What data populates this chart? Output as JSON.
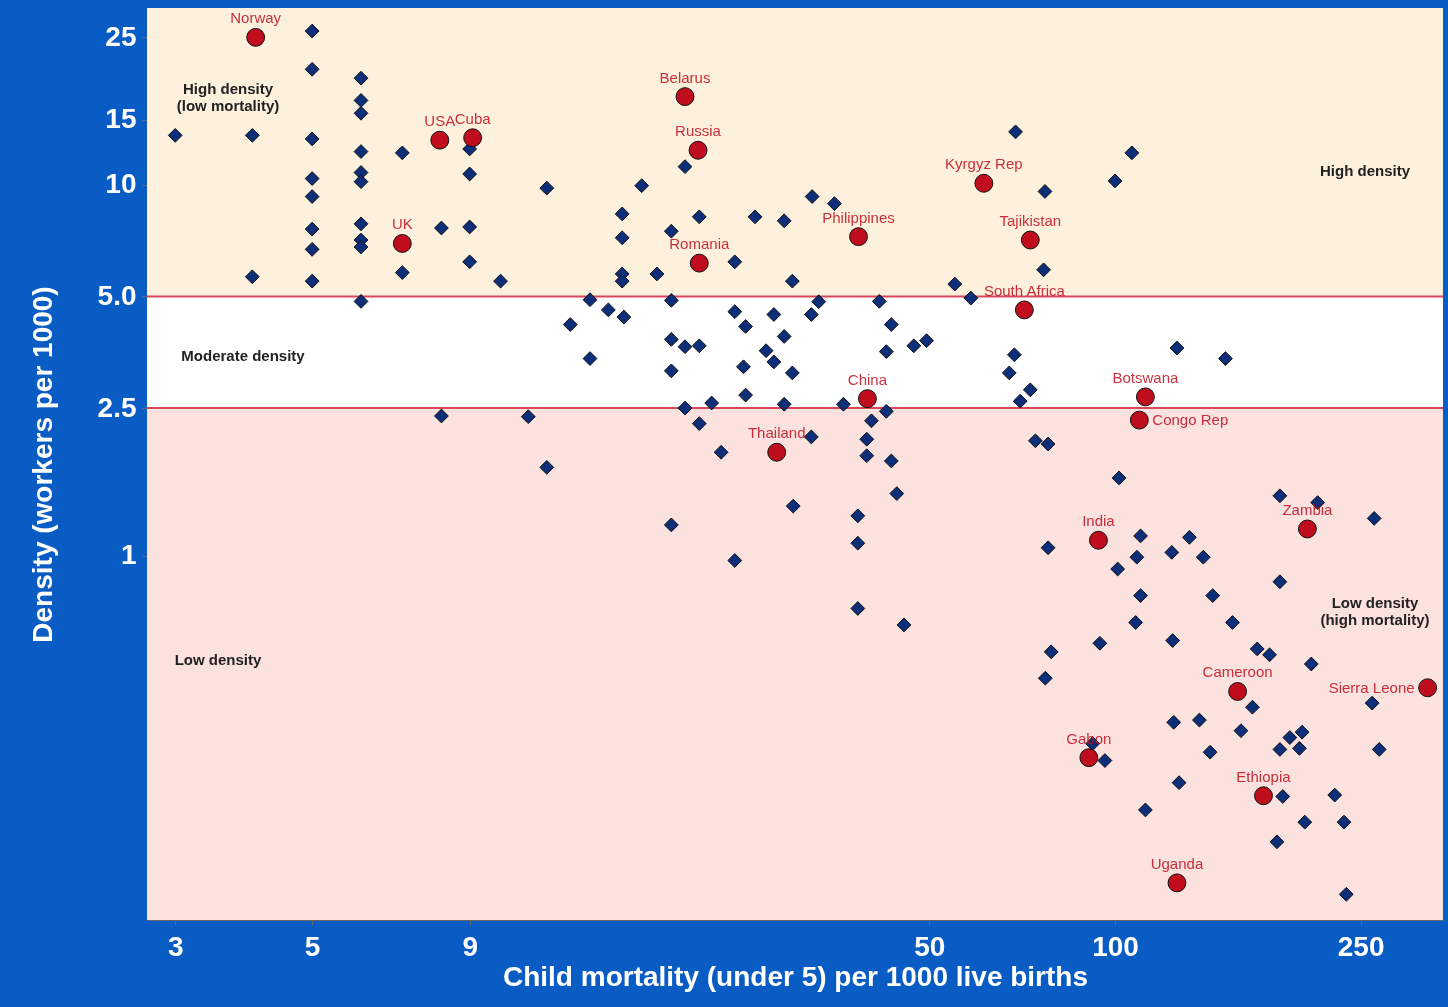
{
  "chart_data": {
    "type": "scatter",
    "xlabel": "Child mortality (under 5) per 1000 live births",
    "ylabel": "Density (workers per 1000)",
    "log": "xy",
    "xlim": [
      2.7,
      340
    ],
    "ylim": [
      0.104,
      30
    ],
    "xticks": [
      3,
      5,
      9,
      50,
      100,
      250
    ],
    "yticks": [
      1,
      2.5,
      {
        "value": 5,
        "label": "5.0"
      },
      10,
      15,
      25
    ],
    "bands": [
      {
        "axis": "y",
        "from": 5,
        "to": 30,
        "color": "#fdf0dc",
        "label": "High density"
      },
      {
        "axis": "y",
        "from": 2.5,
        "to": 5,
        "color": "#ffffff",
        "label": "Moderate density"
      },
      {
        "axis": "y",
        "from": 0.104,
        "to": 2.5,
        "color": "#fbe2df",
        "label": "Low density"
      }
    ],
    "ref_lines": [
      {
        "axis": "y",
        "value": 5,
        "color": "#d9475a"
      },
      {
        "axis": "y",
        "value": 2.5,
        "color": "#d9475a"
      }
    ],
    "series": [
      {
        "color": "#0d2f7a",
        "marker": "diamond",
        "x": [
          5.0,
          5.0,
          6.0,
          6.0,
          6.0,
          3.0,
          4.0,
          5.0,
          6.0,
          7.0,
          9.0,
          9.0,
          5.0,
          6.0,
          6.0,
          5.0,
          12,
          5.0,
          6.0,
          6.0,
          6.0,
          5.0,
          8.1,
          9.0,
          4.0,
          5.0,
          7.0,
          9.0,
          10.1,
          6.0,
          14.1,
          15.1,
          16,
          13.1,
          14.1,
          8.1,
          11.2,
          12,
          15.9,
          15.9,
          15.9,
          15.9,
          20.1,
          17.1,
          21.2,
          26.1,
          29.1,
          32.3,
          35.1,
          19.1,
          24.2,
          18.1,
          30,
          69,
          77,
          76.6,
          55,
          58.4,
          19.1,
          24.2,
          25.2,
          28,
          32.2,
          33.1,
          41.5,
          43.4,
          19.1,
          20.1,
          21.2,
          29.1,
          27.2,
          28,
          30,
          25,
          19.1,
          42.6,
          47.2,
          49.5,
          68.7,
          67.4,
          72.9,
          70.2,
          20.1,
          22.2,
          25.2,
          29.1,
          36.3,
          42.6,
          40.3,
          21.2,
          32.2,
          39.6,
          23,
          39.6,
          43.4,
          74.3,
          77.9,
          19.1,
          24.2,
          30.1,
          38.3,
          38.3,
          44.3,
          38.3,
          45.5,
          77.9,
          78.8,
          77.1,
          106.5,
          100,
          126,
          151,
          101.5,
          185,
          213,
          263,
          110,
          132,
          108.5,
          123.6,
          139,
          101,
          185,
          110,
          144,
          108,
          155,
          124,
          94.5,
          170,
          178,
          208,
          261,
          167,
          124.5,
          137,
          160,
          192,
          201,
          185,
          199,
          268,
          92,
          96.3,
          142.6,
          127,
          187,
          227,
          112,
          203,
          235,
          183,
          237
        ],
        "values": [
          26,
          20.5,
          19.4,
          16.9,
          15.6,
          13.6,
          13.6,
          13.3,
          12.3,
          12.2,
          12.5,
          10.7,
          10.4,
          10.8,
          10.2,
          9.3,
          9.8,
          7.6,
          7.85,
          7.1,
          6.8,
          6.7,
          7.65,
          7.7,
          5.65,
          5.5,
          5.8,
          6.2,
          5.5,
          4.85,
          4.9,
          4.6,
          4.4,
          4.2,
          3.4,
          2.38,
          2.37,
          1.73,
          8.35,
          7.2,
          5.75,
          5.5,
          11.2,
          9.95,
          8.2,
          8.2,
          8.0,
          9.3,
          8.9,
          7.5,
          6.2,
          5.75,
          5.5,
          13.9,
          9.6,
          5.9,
          5.4,
          4.95,
          4.88,
          4.55,
          4.15,
          4.47,
          4.47,
          4.84,
          4.85,
          4.2,
          3.83,
          3.66,
          3.68,
          3.9,
          3.57,
          3.33,
          3.11,
          3.23,
          3.15,
          3.55,
          3.68,
          3.8,
          3.48,
          3.11,
          2.8,
          2.61,
          2.5,
          2.58,
          2.71,
          2.56,
          2.56,
          2.45,
          2.31,
          2.27,
          2.09,
          2.06,
          1.9,
          1.86,
          1.8,
          2.04,
          2.0,
          1.21,
          0.97,
          1.36,
          1.28,
          1.08,
          1.47,
          0.72,
          0.65,
          1.05,
          0.55,
          0.467,
          12.2,
          10.25,
          3.63,
          3.4,
          1.62,
          1.45,
          1.39,
          1.26,
          1.13,
          1.12,
          0.99,
          1.02,
          0.99,
          0.92,
          0.85,
          0.78,
          0.78,
          0.66,
          0.66,
          0.59,
          0.58,
          0.56,
          0.54,
          0.51,
          0.4,
          0.39,
          0.355,
          0.36,
          0.337,
          0.323,
          0.334,
          0.3,
          0.302,
          0.3,
          0.311,
          0.28,
          0.295,
          0.244,
          0.224,
          0.226,
          0.206,
          0.191,
          0.191,
          0.169,
          0.122
        ]
      },
      {
        "color": "#c00d1e",
        "marker": "circle",
        "x": [
          4.05,
          8.05,
          9.1,
          7.0,
          20.1,
          21.1,
          21.2,
          38.4,
          61.3,
          72.9,
          71.3,
          39.7,
          112,
          109.5,
          28.3,
          94,
          205,
          158,
          321,
          90.7,
          174,
          126
        ],
        "values": [
          25,
          13.2,
          13.4,
          6.95,
          17.3,
          12.4,
          6.15,
          7.25,
          10.1,
          7.1,
          4.6,
          2.65,
          2.68,
          2.32,
          1.9,
          1.1,
          1.18,
          0.43,
          0.44,
          0.285,
          0.225,
          0.131
        ]
      }
    ],
    "annotations": [
      {
        "text": "Norway",
        "x": 4.05,
        "y": 25
      },
      {
        "text": "USA",
        "x": 8.05,
        "y": 13.2
      },
      {
        "text": "Cuba",
        "x": 9.1,
        "y": 13.4
      },
      {
        "text": "UK",
        "x": 7.0,
        "y": 6.95
      },
      {
        "text": "Belarus",
        "x": 20.1,
        "y": 17.3
      },
      {
        "text": "Russia",
        "x": 21.1,
        "y": 12.4
      },
      {
        "text": "Romania",
        "x": 21.2,
        "y": 6.15
      },
      {
        "text": "Philippines",
        "x": 38.4,
        "y": 7.25
      },
      {
        "text": "Kyrgyz Rep",
        "x": 61.3,
        "y": 10.1
      },
      {
        "text": "Tajikistan",
        "x": 72.9,
        "y": 7.1
      },
      {
        "text": "South Africa",
        "x": 71.3,
        "y": 4.6
      },
      {
        "text": "China",
        "x": 39.7,
        "y": 2.65
      },
      {
        "text": "Botswana",
        "x": 112,
        "y": 2.68
      },
      {
        "text": "Congo Rep",
        "x": 109.5,
        "y": 2.32
      },
      {
        "text": "Thailand",
        "x": 28.3,
        "y": 1.9
      },
      {
        "text": "India",
        "x": 94,
        "y": 1.1
      },
      {
        "text": "Zambia",
        "x": 205,
        "y": 1.18
      },
      {
        "text": "Cameroon",
        "x": 158,
        "y": 0.43
      },
      {
        "text": "Sierra Leone",
        "x": 321,
        "y": 0.44
      },
      {
        "text": "Gabon",
        "x": 90.7,
        "y": 0.285
      },
      {
        "text": "Ethiopia",
        "x": 174,
        "y": 0.225
      },
      {
        "text": "Uganda",
        "x": 126,
        "y": 0.131
      },
      "High density\n(low mortality)",
      "Low density\n(high mortality)"
    ]
  }
}
